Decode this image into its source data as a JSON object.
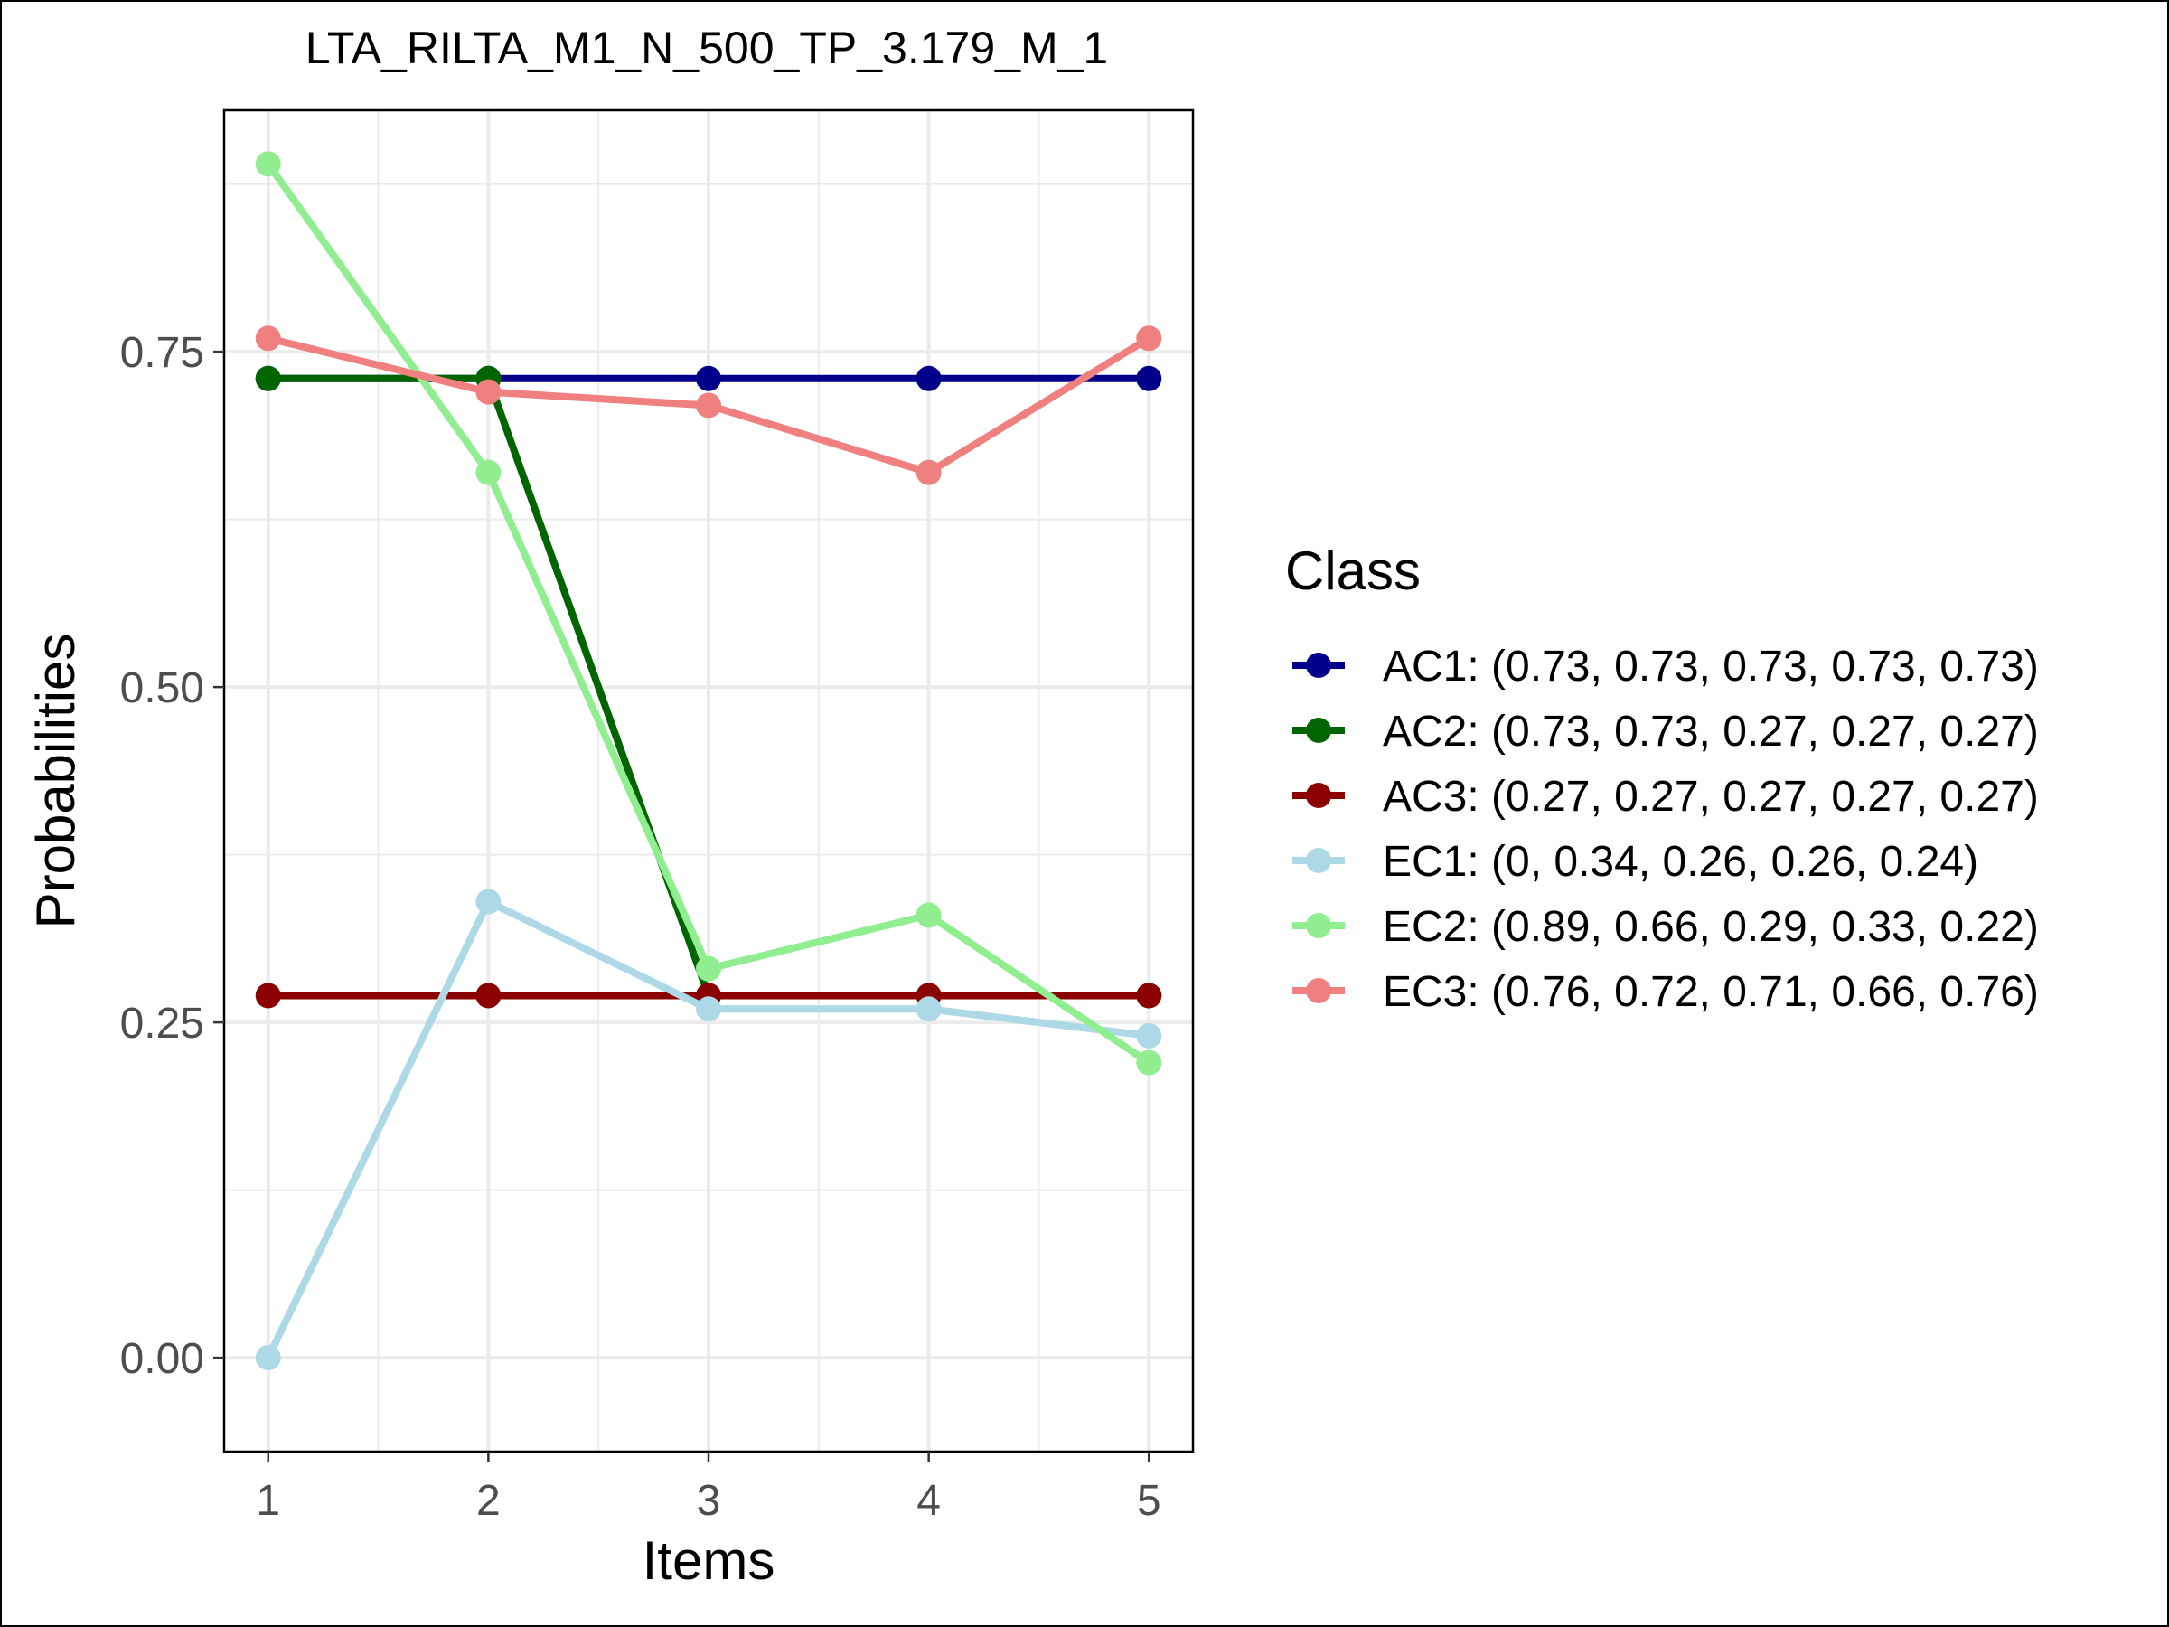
{
  "chart_data": {
    "type": "line",
    "title": "LTA_RILTA_M1_N_500_TP_3.179_M_1",
    "xlabel": "Items",
    "ylabel": "Probabilities",
    "x": [
      1,
      2,
      3,
      4,
      5
    ],
    "x_tick_labels": [
      "1",
      "2",
      "3",
      "4",
      "5"
    ],
    "xlim": [
      0.8,
      5.2
    ],
    "ylim": [
      -0.07,
      0.93
    ],
    "y_ticks": [
      0.0,
      0.25,
      0.5,
      0.75
    ],
    "y_tick_labels": [
      "0.00",
      "0.25",
      "0.50",
      "0.75"
    ],
    "grid": true,
    "legend": {
      "title": "Class",
      "position": "right"
    },
    "series": [
      {
        "name": "AC1",
        "label": "AC1: (0.73, 0.73, 0.73, 0.73, 0.73)",
        "color": "#00008B",
        "values": [
          0.73,
          0.73,
          0.73,
          0.73,
          0.73
        ]
      },
      {
        "name": "AC2",
        "label": "AC2: (0.73, 0.73, 0.27, 0.27, 0.27)",
        "color": "#006400",
        "values": [
          0.73,
          0.73,
          0.27,
          0.27,
          0.27
        ]
      },
      {
        "name": "AC3",
        "label": "AC3: (0.27, 0.27, 0.27, 0.27, 0.27)",
        "color": "#8B0000",
        "values": [
          0.27,
          0.27,
          0.27,
          0.27,
          0.27
        ]
      },
      {
        "name": "EC1",
        "label": "EC1: (0, 0.34, 0.26, 0.26, 0.24)",
        "color": "#ADD8E6",
        "values": [
          0,
          0.34,
          0.26,
          0.26,
          0.24
        ]
      },
      {
        "name": "EC2",
        "label": "EC2: (0.89, 0.66, 0.29, 0.33, 0.22)",
        "color": "#90EE90",
        "values": [
          0.89,
          0.66,
          0.29,
          0.33,
          0.22
        ]
      },
      {
        "name": "EC3",
        "label": "EC3: (0.76, 0.72, 0.71, 0.66, 0.76)",
        "color": "#F08080",
        "values": [
          0.76,
          0.72,
          0.71,
          0.66,
          0.76
        ]
      }
    ]
  }
}
